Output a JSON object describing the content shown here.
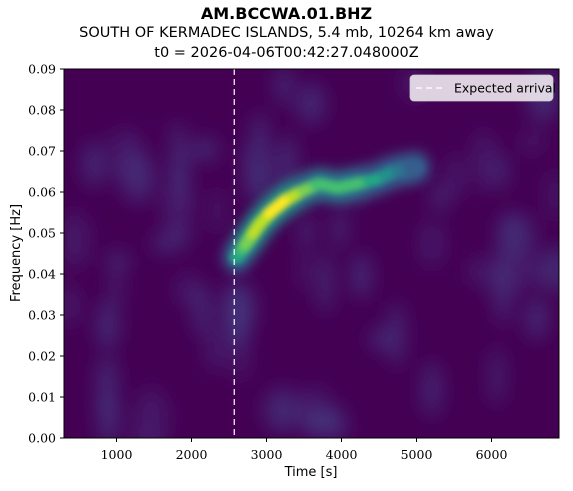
{
  "title": {
    "line1": "AM.BCCWA.01.BHZ",
    "line2": "SOUTH OF KERMADEC ISLANDS, 5.4 mb, 10264 km away",
    "line3": "t0 = 2026-04-06T00:42:27.048000Z"
  },
  "colors": {
    "background": "#440154",
    "colormap": [
      "#440154",
      "#482475",
      "#414487",
      "#355f8d",
      "#2a788e",
      "#21918c",
      "#22a884",
      "#44bf70",
      "#7ad151",
      "#bddf26",
      "#fde725"
    ],
    "arrival_line": "#ffffff"
  },
  "chart_data": {
    "type": "heatmap",
    "xlabel": "Time [s]",
    "ylabel": "Frequency [Hz]",
    "xlim": [
      300,
      6900
    ],
    "ylim": [
      0.0,
      0.09
    ],
    "xticks": [
      1000,
      2000,
      3000,
      4000,
      5000,
      6000
    ],
    "xtick_labels": [
      "1000",
      "2000",
      "3000",
      "4000",
      "5000",
      "6000"
    ],
    "yticks": [
      0.0,
      0.01,
      0.02,
      0.03,
      0.04,
      0.05,
      0.06,
      0.07,
      0.08,
      0.09
    ],
    "ytick_labels": [
      "0.00",
      "0.01",
      "0.02",
      "0.03",
      "0.04",
      "0.05",
      "0.06",
      "0.07",
      "0.08",
      "0.09"
    ],
    "expected_arrival_s": 2570,
    "legend": {
      "entries": [
        "Expected arrival"
      ],
      "placement": "top-right"
    },
    "dispersion_ridge": [
      {
        "time_s": 2600,
        "freq_hz": 0.044,
        "intensity": 0.55
      },
      {
        "time_s": 2750,
        "freq_hz": 0.048,
        "intensity": 0.8
      },
      {
        "time_s": 2900,
        "freq_hz": 0.052,
        "intensity": 0.9
      },
      {
        "time_s": 3050,
        "freq_hz": 0.055,
        "intensity": 0.95
      },
      {
        "time_s": 3250,
        "freq_hz": 0.058,
        "intensity": 1.0
      },
      {
        "time_s": 3450,
        "freq_hz": 0.06,
        "intensity": 0.85
      },
      {
        "time_s": 3700,
        "freq_hz": 0.062,
        "intensity": 0.7
      },
      {
        "time_s": 3950,
        "freq_hz": 0.061,
        "intensity": 0.72
      },
      {
        "time_s": 4200,
        "freq_hz": 0.062,
        "intensity": 0.7
      },
      {
        "time_s": 4450,
        "freq_hz": 0.063,
        "intensity": 0.62
      },
      {
        "time_s": 4700,
        "freq_hz": 0.065,
        "intensity": 0.45
      },
      {
        "time_s": 5000,
        "freq_hz": 0.066,
        "intensity": 0.25
      }
    ]
  }
}
